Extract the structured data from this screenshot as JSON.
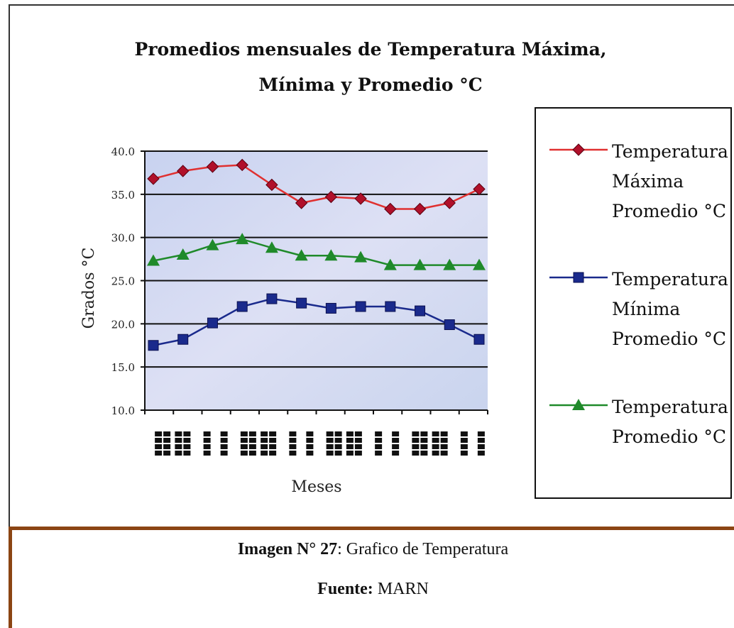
{
  "chart_data": {
    "type": "line",
    "title": "Promedios mensuales de Temperatura Máxima,",
    "title_line2": "Mínima y Promedio °C",
    "xlabel": "Meses",
    "ylabel": "Grados °C",
    "ylim": [
      10,
      40
    ],
    "yticks": [
      "10.0",
      "15.0",
      "20.0",
      "25.0",
      "30.0",
      "35.0",
      "40.0"
    ],
    "grid": true,
    "legend_position": "right",
    "series": [
      {
        "name": "Temperatura Máxima Promedio °C",
        "legend_lines": [
          "Temperatura",
          "Máxima",
          "Promedio °C"
        ],
        "color": "#e03030",
        "marker": "diamond",
        "marker_color": "#b0102a",
        "values": [
          36.8,
          37.7,
          38.2,
          38.4,
          36.1,
          34.0,
          34.7,
          34.5,
          33.3,
          33.3,
          34.0,
          35.6
        ]
      },
      {
        "name": "Temperatura Mínima Promedio °C",
        "legend_lines": [
          "Temperatura",
          "Mínima",
          "Promedio °C"
        ],
        "color": "#1a2a8c",
        "marker": "square",
        "marker_color": "#1a2a8c",
        "values": [
          17.5,
          18.2,
          20.1,
          22.0,
          22.9,
          22.4,
          21.8,
          22.0,
          22.0,
          21.5,
          19.9,
          18.2
        ]
      },
      {
        "name": "Temperatura Promedio °C",
        "legend_lines": [
          "Temperatura",
          "Promedio °C"
        ],
        "color": "#1f8a2a",
        "marker": "triangle",
        "marker_color": "#1f8a2a",
        "values": [
          27.3,
          28.0,
          29.1,
          29.8,
          28.8,
          27.9,
          27.9,
          27.7,
          26.8,
          26.8,
          26.8,
          26.8
        ]
      }
    ]
  },
  "caption": {
    "label": "Imagen N° 27",
    "text": ": Grafico de Temperatura",
    "source_label": "Fuente:",
    "source_text": " MARN"
  }
}
